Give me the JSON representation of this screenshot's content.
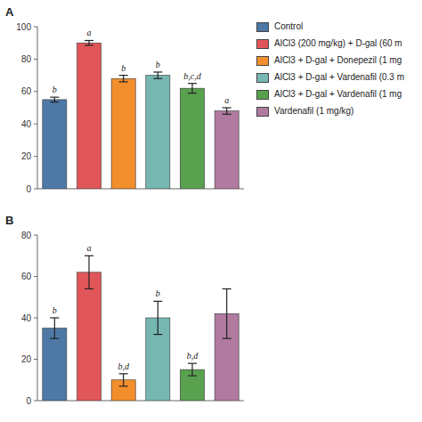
{
  "chart_data": [
    {
      "type": "bar",
      "title": "A",
      "categories": [
        "Control",
        "AlCl3 (200 mg/kg) + D-gal (60 m",
        "AlCl3 + D-gal + Donepezil (1 mg",
        "AlCl3 + D-gal + Vardenafil (0.3 m",
        "AlCl3 + D-gal + Vardenafil (1 mg",
        "Vardenafil (1 mg/kg)"
      ],
      "values": [
        55,
        90,
        68,
        70,
        62,
        48
      ],
      "errors": [
        1.5,
        1.5,
        2,
        2,
        3,
        2
      ],
      "annotations": [
        "b",
        "a",
        "b",
        "b",
        "b,c,d",
        "a"
      ],
      "colors": [
        "#4e79a7",
        "#e15759",
        "#f28e2b",
        "#76b7b2",
        "#59a14f",
        "#b07aa1"
      ],
      "ylim": [
        0,
        100
      ],
      "yticks": [
        0,
        20,
        40,
        60,
        80,
        100
      ],
      "grid": false,
      "tick_labels": "y",
      "legend": "right"
    },
    {
      "type": "bar",
      "title": "B",
      "categories": [
        "Control",
        "AlCl3 (200 mg/kg) + D-gal (60 m",
        "AlCl3 + D-gal + Donepezil (1 mg",
        "AlCl3 + D-gal + Vardenafil (0.3 m",
        "AlCl3 + D-gal + Vardenafil (1 mg",
        "Vardenafil (1 mg/kg)"
      ],
      "values": [
        35,
        62,
        10,
        40,
        15,
        42
      ],
      "errors": [
        5,
        8,
        3,
        8,
        3,
        12
      ],
      "annotations": [
        "b",
        "a",
        "b,d",
        "b",
        "b,d",
        null
      ],
      "colors": [
        "#4e79a7",
        "#e15759",
        "#f28e2b",
        "#76b7b2",
        "#59a14f",
        "#b07aa1"
      ],
      "ylim": [
        0,
        80
      ],
      "yticks": [
        0,
        20,
        40,
        60,
        80
      ],
      "grid": false,
      "tick_labels": "y"
    }
  ]
}
